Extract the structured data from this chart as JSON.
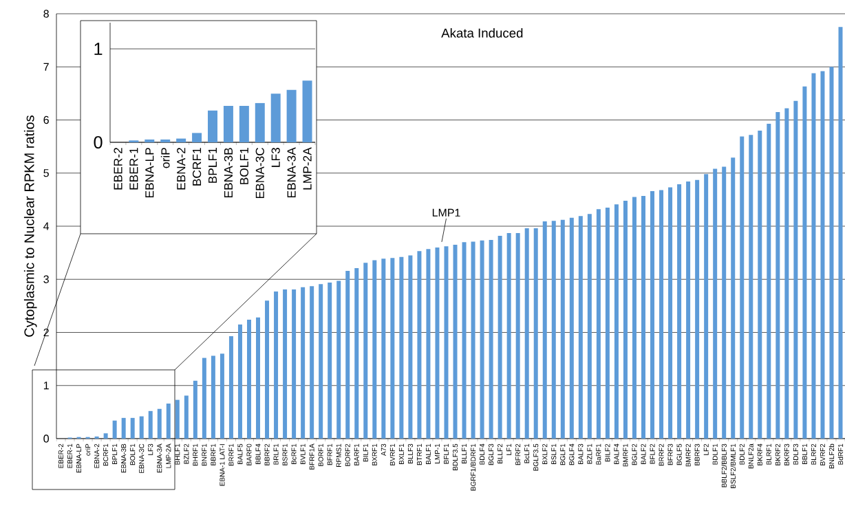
{
  "chart_data": [
    {
      "type": "bar",
      "title": "Akata Induced",
      "ylabel": "Cytoplasmic to Nuclear RPKM ratios",
      "categories": [
        "EBER-2",
        "EBER-1",
        "EBNA-LP",
        "oriP",
        "EBNA-2",
        "BCRF1",
        "BPLF1",
        "EBNA-3B",
        "BOLF1",
        "EBNA-3C",
        "LF3",
        "EBNA-3A",
        "LMP-2A",
        "BHLF1",
        "BZLF2",
        "BHRF1",
        "BNRF1",
        "BBRF1",
        "EBNA-1 LAT-I",
        "BRRF1",
        "BALF5",
        "BARF0",
        "BBLF4",
        "BBRF2",
        "BRLF1",
        "BSRF1",
        "BcRF1",
        "BVLF1",
        "BFRF1A",
        "BORF1",
        "BFRF1",
        "RPMS1",
        "BORF2",
        "BARF1",
        "BILF1",
        "BXRF1",
        "A73",
        "BVRF1",
        "BXLF1",
        "BLLF3",
        "BTRF1",
        "BALF1",
        "LMP-1",
        "BFLF1",
        "BDLF3.5",
        "BLLF1",
        "BGRF1/BDRF1",
        "BDLF4",
        "BGLF3",
        "BLLF2",
        "LF1",
        "BFRF2",
        "BcLF1",
        "BGLF3.5",
        "BXLF2",
        "BSLF1",
        "BGLF1",
        "BGLF4",
        "BALF3",
        "BZLF1",
        "BaRF1",
        "BILF2",
        "BALF4",
        "BMRF1",
        "BGLF2",
        "BALF2",
        "BFLF2",
        "BRRF2",
        "BFRF3",
        "BGLF5",
        "BMRF2",
        "BBRF3",
        "LF2",
        "BDLF1",
        "BBLF2/BBLF3",
        "BSLF2/BMLF1",
        "BDLF2",
        "BNLF2a",
        "BKRF4",
        "BLRF1",
        "BKRF2",
        "BKRF3",
        "BDLF3",
        "BBLF1",
        "BLRF2",
        "BVRF2",
        "BNLF2b",
        "BdRF1"
      ],
      "values": [
        0,
        0.02,
        0.03,
        0.03,
        0.04,
        0.1,
        0.34,
        0.39,
        0.39,
        0.42,
        0.52,
        0.56,
        0.66,
        0.73,
        0.81,
        1.09,
        1.52,
        1.56,
        1.6,
        1.93,
        2.15,
        2.24,
        2.28,
        2.6,
        2.77,
        2.81,
        2.81,
        2.85,
        2.87,
        2.91,
        2.94,
        2.97,
        3.16,
        3.21,
        3.31,
        3.36,
        3.39,
        3.4,
        3.42,
        3.45,
        3.53,
        3.57,
        3.6,
        3.62,
        3.65,
        3.7,
        3.71,
        3.73,
        3.74,
        3.82,
        3.87,
        3.87,
        3.96,
        3.96,
        4.09,
        4.1,
        4.12,
        4.16,
        4.19,
        4.23,
        4.32,
        4.35,
        4.41,
        4.48,
        4.55,
        4.57,
        4.66,
        4.68,
        4.73,
        4.79,
        4.84,
        4.87,
        4.98,
        5.08,
        5.12,
        5.29,
        5.69,
        5.72,
        5.8,
        5.93,
        6.15,
        6.22,
        6.36,
        6.63,
        6.88,
        6.92,
        7.0,
        7.75
      ],
      "color": "#5d9bd8",
      "ylim": [
        0,
        8
      ],
      "yticks": [
        0,
        1,
        2,
        3,
        4,
        5,
        6,
        7,
        8
      ],
      "grid": "y",
      "annotations": [
        {
          "text": "LMP1",
          "x": "LMP-1",
          "y": 3.6
        }
      ]
    },
    {
      "type": "bar",
      "categories": [
        "EBER-2",
        "EBER-1",
        "EBNA-LP",
        "oriP",
        "EBNA-2",
        "BCRF1",
        "BPLF1",
        "EBNA-3B",
        "BOLF1",
        "EBNA-3C",
        "LF3",
        "EBNA-3A",
        "LMP-2A"
      ],
      "values": [
        0,
        0.02,
        0.03,
        0.03,
        0.04,
        0.1,
        0.34,
        0.39,
        0.39,
        0.42,
        0.52,
        0.56,
        0.66
      ],
      "color": "#5d9bd8",
      "ylim": [
        0,
        1.28
      ],
      "yticks": [
        0,
        1
      ],
      "grid": "y"
    }
  ]
}
